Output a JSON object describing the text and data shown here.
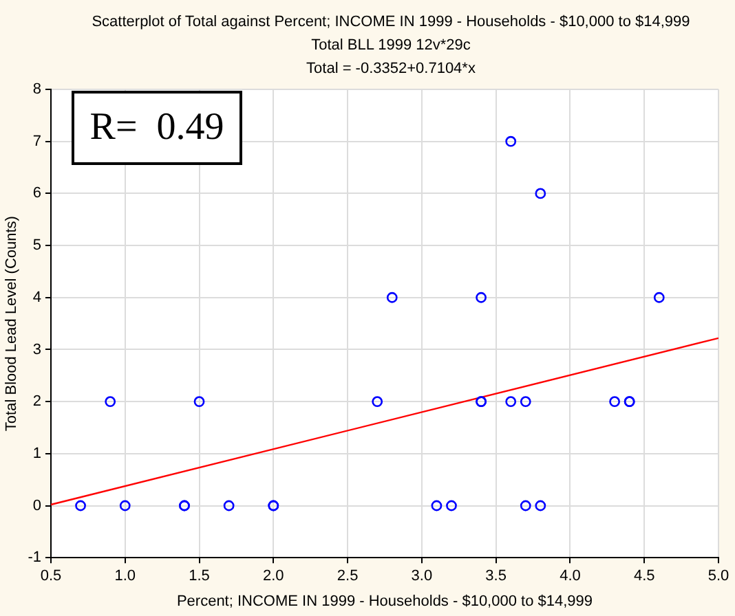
{
  "chart_data": {
    "type": "scatter",
    "title": "Scatterplot of Total against Percent; INCOME IN 1999 - Households - $10,000 to $14,999",
    "subtitle": "Total BLL 1999 12v*29c",
    "xlabel": "Percent; INCOME IN 1999 - Households - $10,000 to $14,999",
    "ylabel": "Total Blood Lead Level (Counts)",
    "annotations": [
      "Total = -0.3352+0.7104*x",
      "R=  0.49"
    ],
    "series": [
      {
        "type": "scatter",
        "color": "#0000ff",
        "marker": "circle",
        "x": [
          0.7,
          0.9,
          1.0,
          1.4,
          1.4,
          1.5,
          1.7,
          2.0,
          2.0,
          2.7,
          2.8,
          3.1,
          3.2,
          3.4,
          3.4,
          3.4,
          3.6,
          3.6,
          3.7,
          3.7,
          3.8,
          3.8,
          4.3,
          4.4,
          4.4,
          4.6
        ],
        "values": [
          0,
          2,
          0,
          0,
          0,
          2,
          0,
          0,
          0,
          2,
          4,
          0,
          0,
          4,
          2,
          2,
          7,
          2,
          2,
          0,
          6,
          0,
          2,
          2,
          2,
          4
        ]
      },
      {
        "type": "line",
        "color": "#ff0000",
        "marker": "none",
        "x": [
          0.5,
          5.0
        ],
        "values": [
          0.02,
          3.22
        ]
      }
    ],
    "xlim": [
      0.5,
      5.0
    ],
    "xticks": [
      {
        "value": 0.5,
        "label": "0.5"
      },
      {
        "value": 1,
        "label": "1.0"
      },
      {
        "value": 1.5,
        "label": "1.5"
      },
      {
        "value": 2,
        "label": "2.0"
      },
      {
        "value": 2.5,
        "label": "2.5"
      },
      {
        "value": 3,
        "label": "3.0"
      },
      {
        "value": 3.5,
        "label": "3.5"
      },
      {
        "value": 4,
        "label": "4.0"
      },
      {
        "value": 4.5,
        "label": "4.5"
      },
      {
        "value": 5,
        "label": "5.0"
      }
    ],
    "ylim": [
      -1,
      8
    ],
    "yticks": [
      -1,
      0,
      1,
      2,
      3,
      4,
      5,
      6,
      7,
      8
    ],
    "grid": true,
    "legend": false
  }
}
